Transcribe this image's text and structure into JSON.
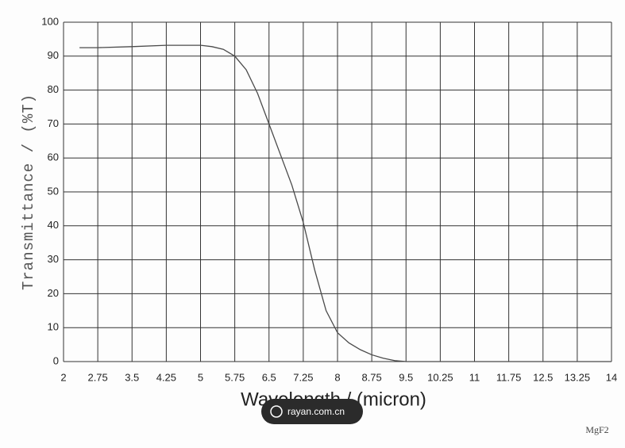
{
  "chart_data": {
    "type": "line",
    "x_label": "Wavelength / (micron)",
    "y_label": "Transmittance / (%T)",
    "annotation": "MgF2",
    "watermark": "rayan.com.cn",
    "xlim": [
      2,
      14
    ],
    "ylim": [
      0,
      100
    ],
    "xticks": [
      2,
      2.75,
      3.5,
      4.25,
      5,
      5.75,
      6.5,
      7.25,
      8,
      8.75,
      9.5,
      10.25,
      11,
      11.75,
      12.5,
      13.25,
      14
    ],
    "yticks": [
      0,
      10,
      20,
      30,
      40,
      50,
      60,
      70,
      80,
      90,
      100
    ],
    "grid": true,
    "series": [
      {
        "color": "#4a4a4a",
        "x": [
          2.35,
          2.75,
          3.5,
          4.25,
          5,
          5.25,
          5.5,
          5.75,
          6,
          6.25,
          6.5,
          6.75,
          7,
          7.25,
          7.5,
          7.75,
          8,
          8.25,
          8.5,
          8.75,
          9,
          9.25,
          9.5,
          10,
          11,
          12,
          13,
          14
        ],
        "values": [
          92.5,
          92.5,
          92.8,
          93.2,
          93.2,
          92.8,
          92,
          90,
          86,
          79,
          70,
          61,
          52,
          41,
          27,
          15,
          8.5,
          5.5,
          3.5,
          2,
          1,
          0.3,
          0,
          0,
          0,
          0,
          0,
          0
        ]
      }
    ]
  }
}
